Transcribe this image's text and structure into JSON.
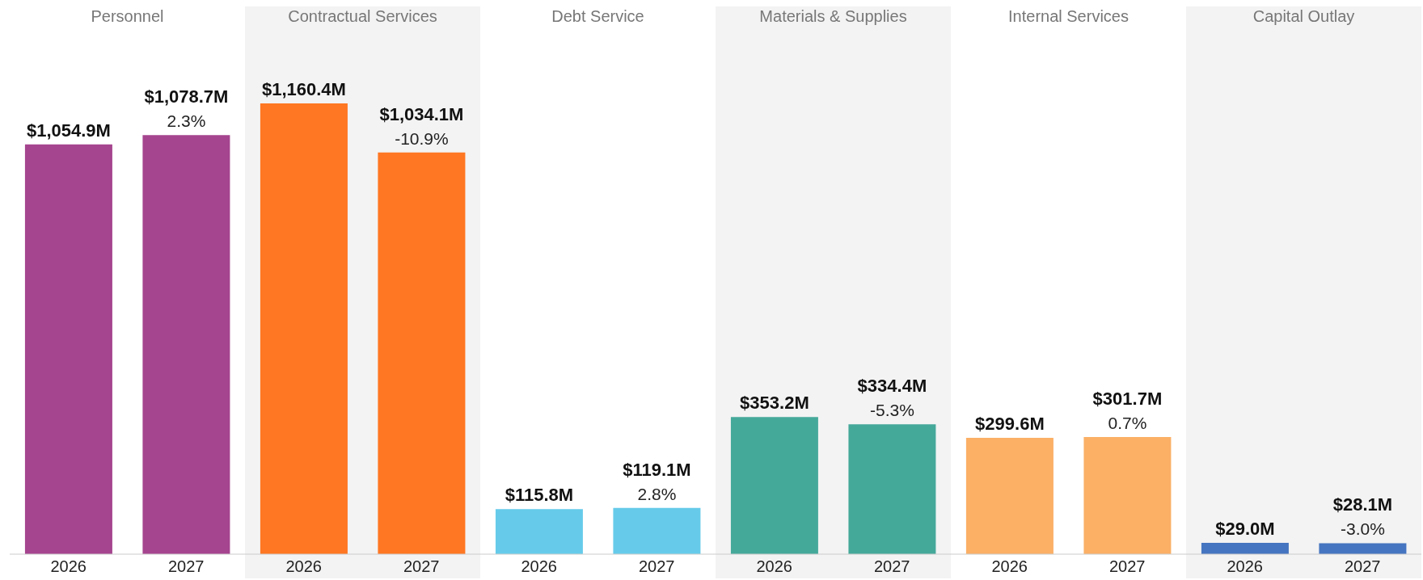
{
  "chart_data": [
    {
      "type": "bar",
      "title": "Personnel",
      "categories": [
        "2026",
        "2027"
      ],
      "values": [
        1054.9,
        1078.7
      ],
      "color": "#a5448f",
      "value_labels": [
        "$1,054.9M",
        "$1,078.7M"
      ],
      "annotations": [
        {
          "text": "2.3%",
          "x": "2027",
          "y": 1078.7
        }
      ]
    },
    {
      "type": "bar",
      "title": "Contractual Services",
      "categories": [
        "2026",
        "2027"
      ],
      "values": [
        1160.4,
        1034.1
      ],
      "color": "#ff7722",
      "value_labels": [
        "$1,160.4M",
        "$1,034.1M"
      ],
      "annotations": [
        {
          "text": "-10.9%",
          "x": "2027",
          "y": 1034.1
        }
      ]
    },
    {
      "type": "bar",
      "title": "Debt Service",
      "categories": [
        "2026",
        "2027"
      ],
      "values": [
        115.8,
        119.1
      ],
      "color": "#66cbea",
      "value_labels": [
        "$115.8M",
        "$119.1M"
      ],
      "annotations": [
        {
          "text": "2.8%",
          "x": "2027",
          "y": 119.1
        }
      ]
    },
    {
      "type": "bar",
      "title": "Materials & Supplies",
      "categories": [
        "2026",
        "2027"
      ],
      "values": [
        353.2,
        334.4
      ],
      "color": "#45a99a",
      "value_labels": [
        "$353.2M",
        "$334.4M"
      ],
      "annotations": [
        {
          "text": "-5.3%",
          "x": "2027",
          "y": 334.4
        }
      ]
    },
    {
      "type": "bar",
      "title": "Internal Services",
      "categories": [
        "2026",
        "2027"
      ],
      "values": [
        299.6,
        301.7
      ],
      "color": "#fbb066",
      "value_labels": [
        "$299.6M",
        "$301.7M"
      ],
      "annotations": [
        {
          "text": "0.7%",
          "x": "2027",
          "y": 301.7
        }
      ]
    },
    {
      "type": "bar",
      "title": "Capital Outlay",
      "categories": [
        "2026",
        "2027"
      ],
      "values": [
        29.0,
        28.1
      ],
      "color": "#4575c0",
      "value_labels": [
        "$29.0M",
        "$28.1M"
      ],
      "annotations": [
        {
          "text": "-3.0%",
          "x": "2027",
          "y": 28.1
        }
      ]
    }
  ]
}
